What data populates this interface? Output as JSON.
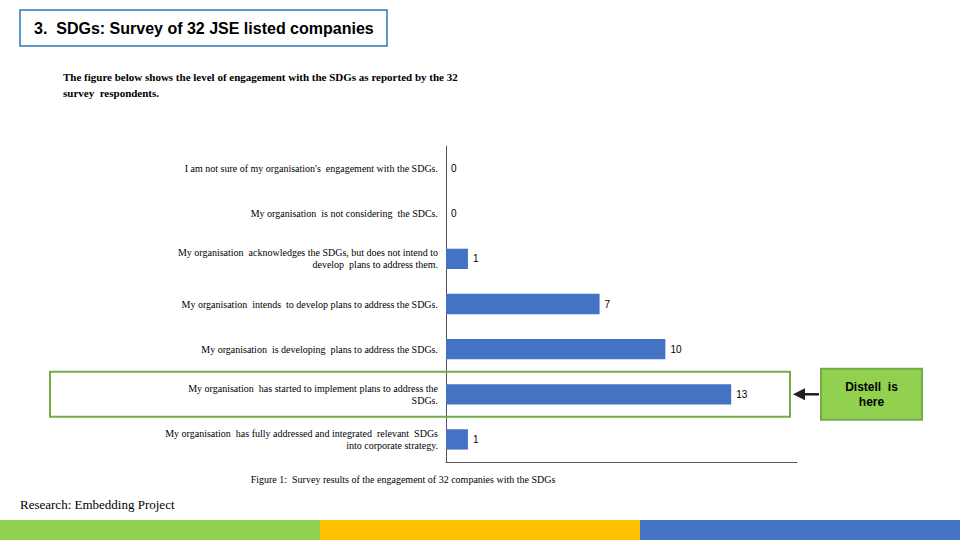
{
  "chart_data": {
    "type": "bar",
    "orientation": "horizontal",
    "title": "3.  SDGs: Survey of 32 JSE listed companies",
    "subtitle": "The figure below shows the level of engagement with the SDGs as reported by the 32\nsurvey  respondents.",
    "caption": "Figure 1:  Survey results of the engagement of 32 companies with the SDGs",
    "footer": "Research: Embedding Project",
    "categories": [
      "I am not sure of my organisation's  engagement with the SDGs.",
      "My organisation  is not considering  the SDCs.",
      "My organisation  acknowledges the SDGs, but does not intend to\n develop  plans to address them.",
      "My organisation  intends  to develop plans to address the SDGs.",
      "My organisation  is developing  plans to address the SDGs.",
      "My organisation  has started to implement plans to address the\n SDGs.",
      "My organisation  has fully addressed and integrated  relevant  SDGs\n into corporate strategy."
    ],
    "values": [
      0,
      0,
      1,
      7,
      10,
      13,
      1
    ],
    "color": "#4472C4",
    "xlim": [
      0,
      16
    ],
    "grid": false,
    "tick_labels": false,
    "data_labels": true,
    "annotations": [
      {
        "text": "Distell  is\nhere",
        "category": "My organisation  has started to implement plans to address the\n SDGs."
      }
    ]
  }
}
